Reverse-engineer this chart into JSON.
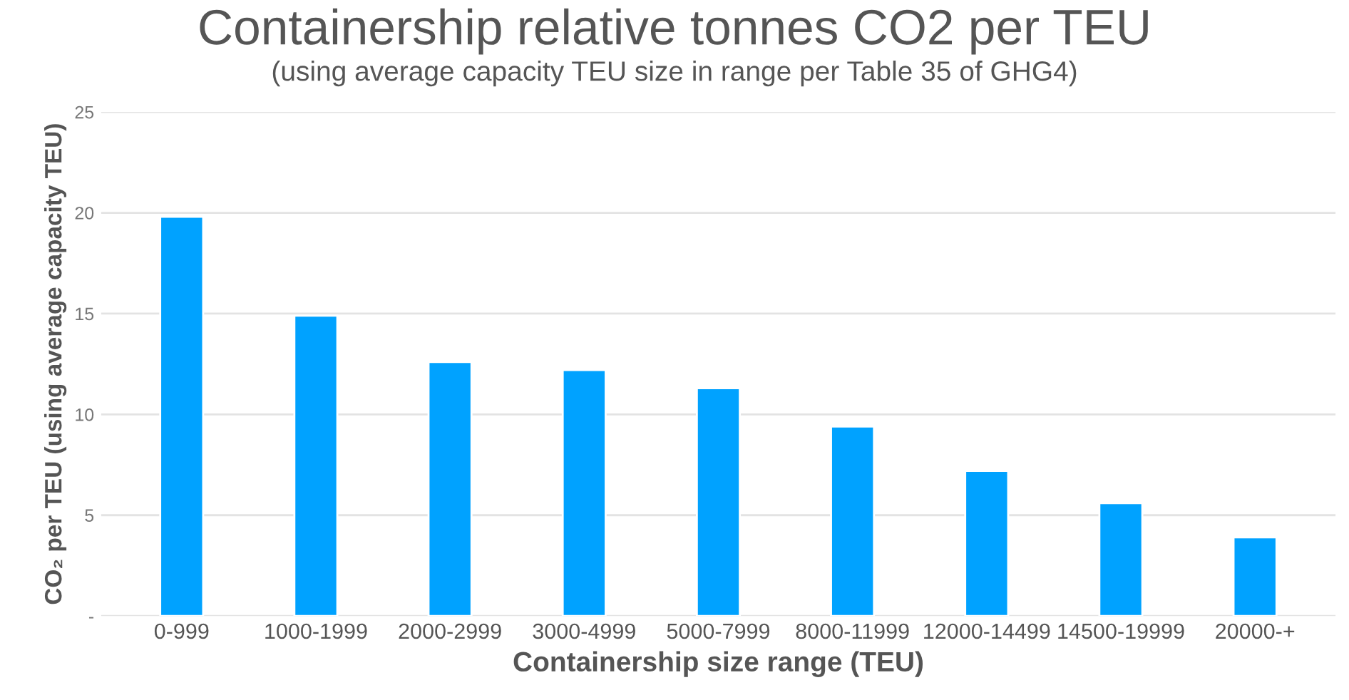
{
  "chart_data": {
    "type": "bar",
    "title": "Containership relative tonnes CO2 per TEU",
    "subtitle": "(using average capacity TEU size in range per Table 35 of GHG4)",
    "xlabel": "Containership size range (TEU)",
    "ylabel": "CO₂ per TEU (using average capacity TEU)",
    "categories": [
      "0-999",
      "1000-1999",
      "2000-2999",
      "3000-4999",
      "5000-7999",
      "8000-11999",
      "12000-14499",
      "14500-19999",
      "20000-+"
    ],
    "values": [
      19.8,
      14.9,
      12.6,
      12.2,
      11.3,
      9.4,
      7.2,
      5.6,
      3.9
    ],
    "color": "#00a2ff",
    "ylim": [
      0,
      25
    ],
    "yticks": [
      {
        "value": 0,
        "label": "-"
      },
      5,
      10,
      15,
      20,
      25
    ],
    "grid": "y"
  }
}
